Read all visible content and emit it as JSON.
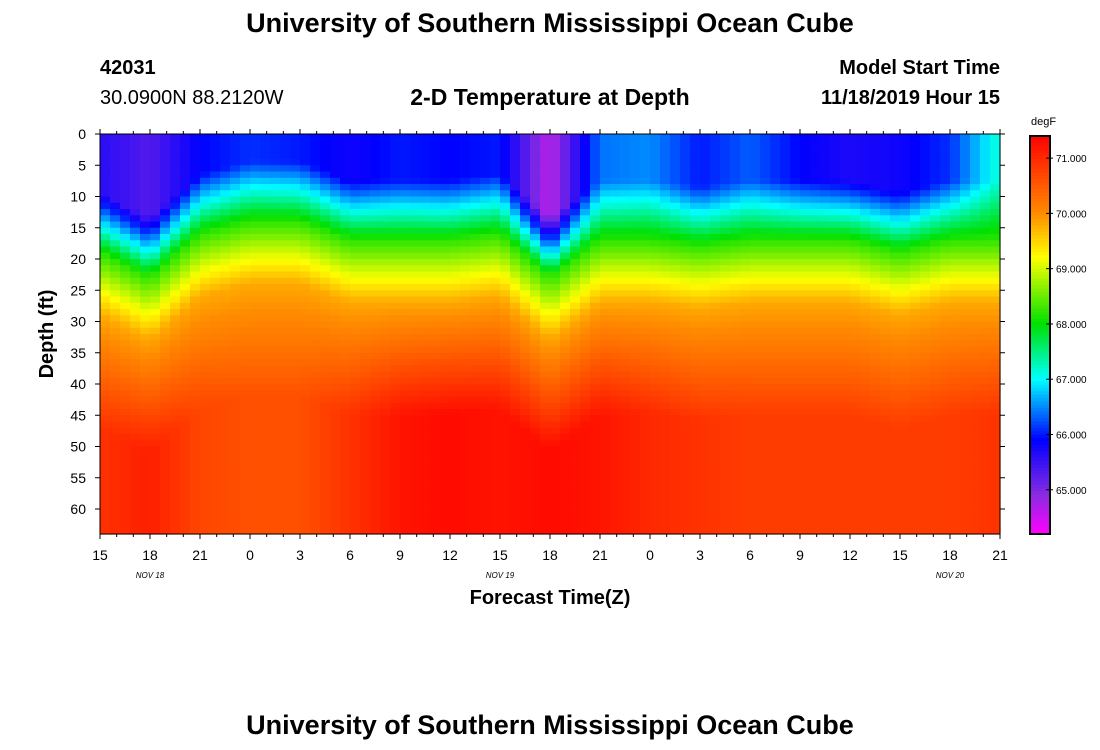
{
  "header": {
    "title": "University of Southern Mississippi Ocean Cube",
    "station_id": "42031",
    "location": "30.0900N 88.2120W",
    "plot_title": "2-D Temperature at Depth",
    "model_label": "Model Start Time",
    "model_time": "11/18/2019 Hour 15"
  },
  "footer": {
    "title": "University of Southern Mississippi Ocean Cube"
  },
  "colors": {
    "magenta": "#ff00ff",
    "violet": "#8a2be2",
    "blue": "#0000ff",
    "cyan": "#00ffff",
    "green": "#00e000",
    "yellow": "#ffff00",
    "orange": "#ff8c00",
    "red": "#ff0000"
  },
  "chart_data": {
    "type": "heatmap",
    "title": "2-D Temperature at Depth",
    "xlabel": "Forecast Time(Z)",
    "ylabel": "Depth (ft)",
    "x_tick_labels": [
      "15",
      "18",
      "21",
      "0",
      "3",
      "6",
      "9",
      "12",
      "15",
      "18",
      "21",
      "0",
      "3",
      "6",
      "9",
      "12",
      "15",
      "18",
      "21"
    ],
    "date_labels": [
      {
        "text": "NOV 18",
        "hour_index": 3
      },
      {
        "text": "NOV 19",
        "hour_index": 24
      },
      {
        "text": "NOV 20",
        "hour_index": 51
      }
    ],
    "x_range_hours": [
      0,
      54
    ],
    "y_tick_labels": [
      "0",
      "5",
      "10",
      "15",
      "20",
      "25",
      "30",
      "35",
      "40",
      "45",
      "50",
      "55",
      "60"
    ],
    "y_range_ft": [
      0,
      64
    ],
    "colorbar": {
      "unit": "degF",
      "min": 64.2,
      "max": 71.4,
      "tick_labels": [
        "71.000",
        "70.000",
        "69.000",
        "68.000",
        "67.000",
        "66.000",
        "65.000"
      ],
      "tick_values": [
        71,
        70,
        69,
        68,
        67,
        66,
        65
      ]
    },
    "hours": [
      0,
      3,
      6,
      9,
      12,
      15,
      18,
      21,
      24,
      27,
      30,
      33,
      36,
      39,
      42,
      45,
      48,
      51,
      54
    ],
    "surface_temp_degF": [
      65.6,
      65.3,
      65.9,
      66.1,
      66.0,
      65.8,
      66.0,
      65.9,
      66.0,
      64.6,
      66.4,
      66.5,
      66.0,
      66.3,
      65.9,
      65.7,
      65.8,
      66.1,
      67.2
    ],
    "thermocline_depth_ft": [
      19,
      23,
      16,
      14,
      14,
      17,
      17,
      17,
      16,
      23,
      17,
      17,
      18,
      17,
      17,
      17,
      19,
      17,
      17
    ],
    "deep_temp_degF": [
      70.9,
      71.1,
      70.7,
      70.6,
      70.6,
      70.9,
      71.2,
      71.3,
      71.2,
      71.3,
      71.2,
      71.0,
      70.9,
      70.8,
      70.8,
      70.8,
      70.8,
      70.8,
      70.9
    ]
  }
}
